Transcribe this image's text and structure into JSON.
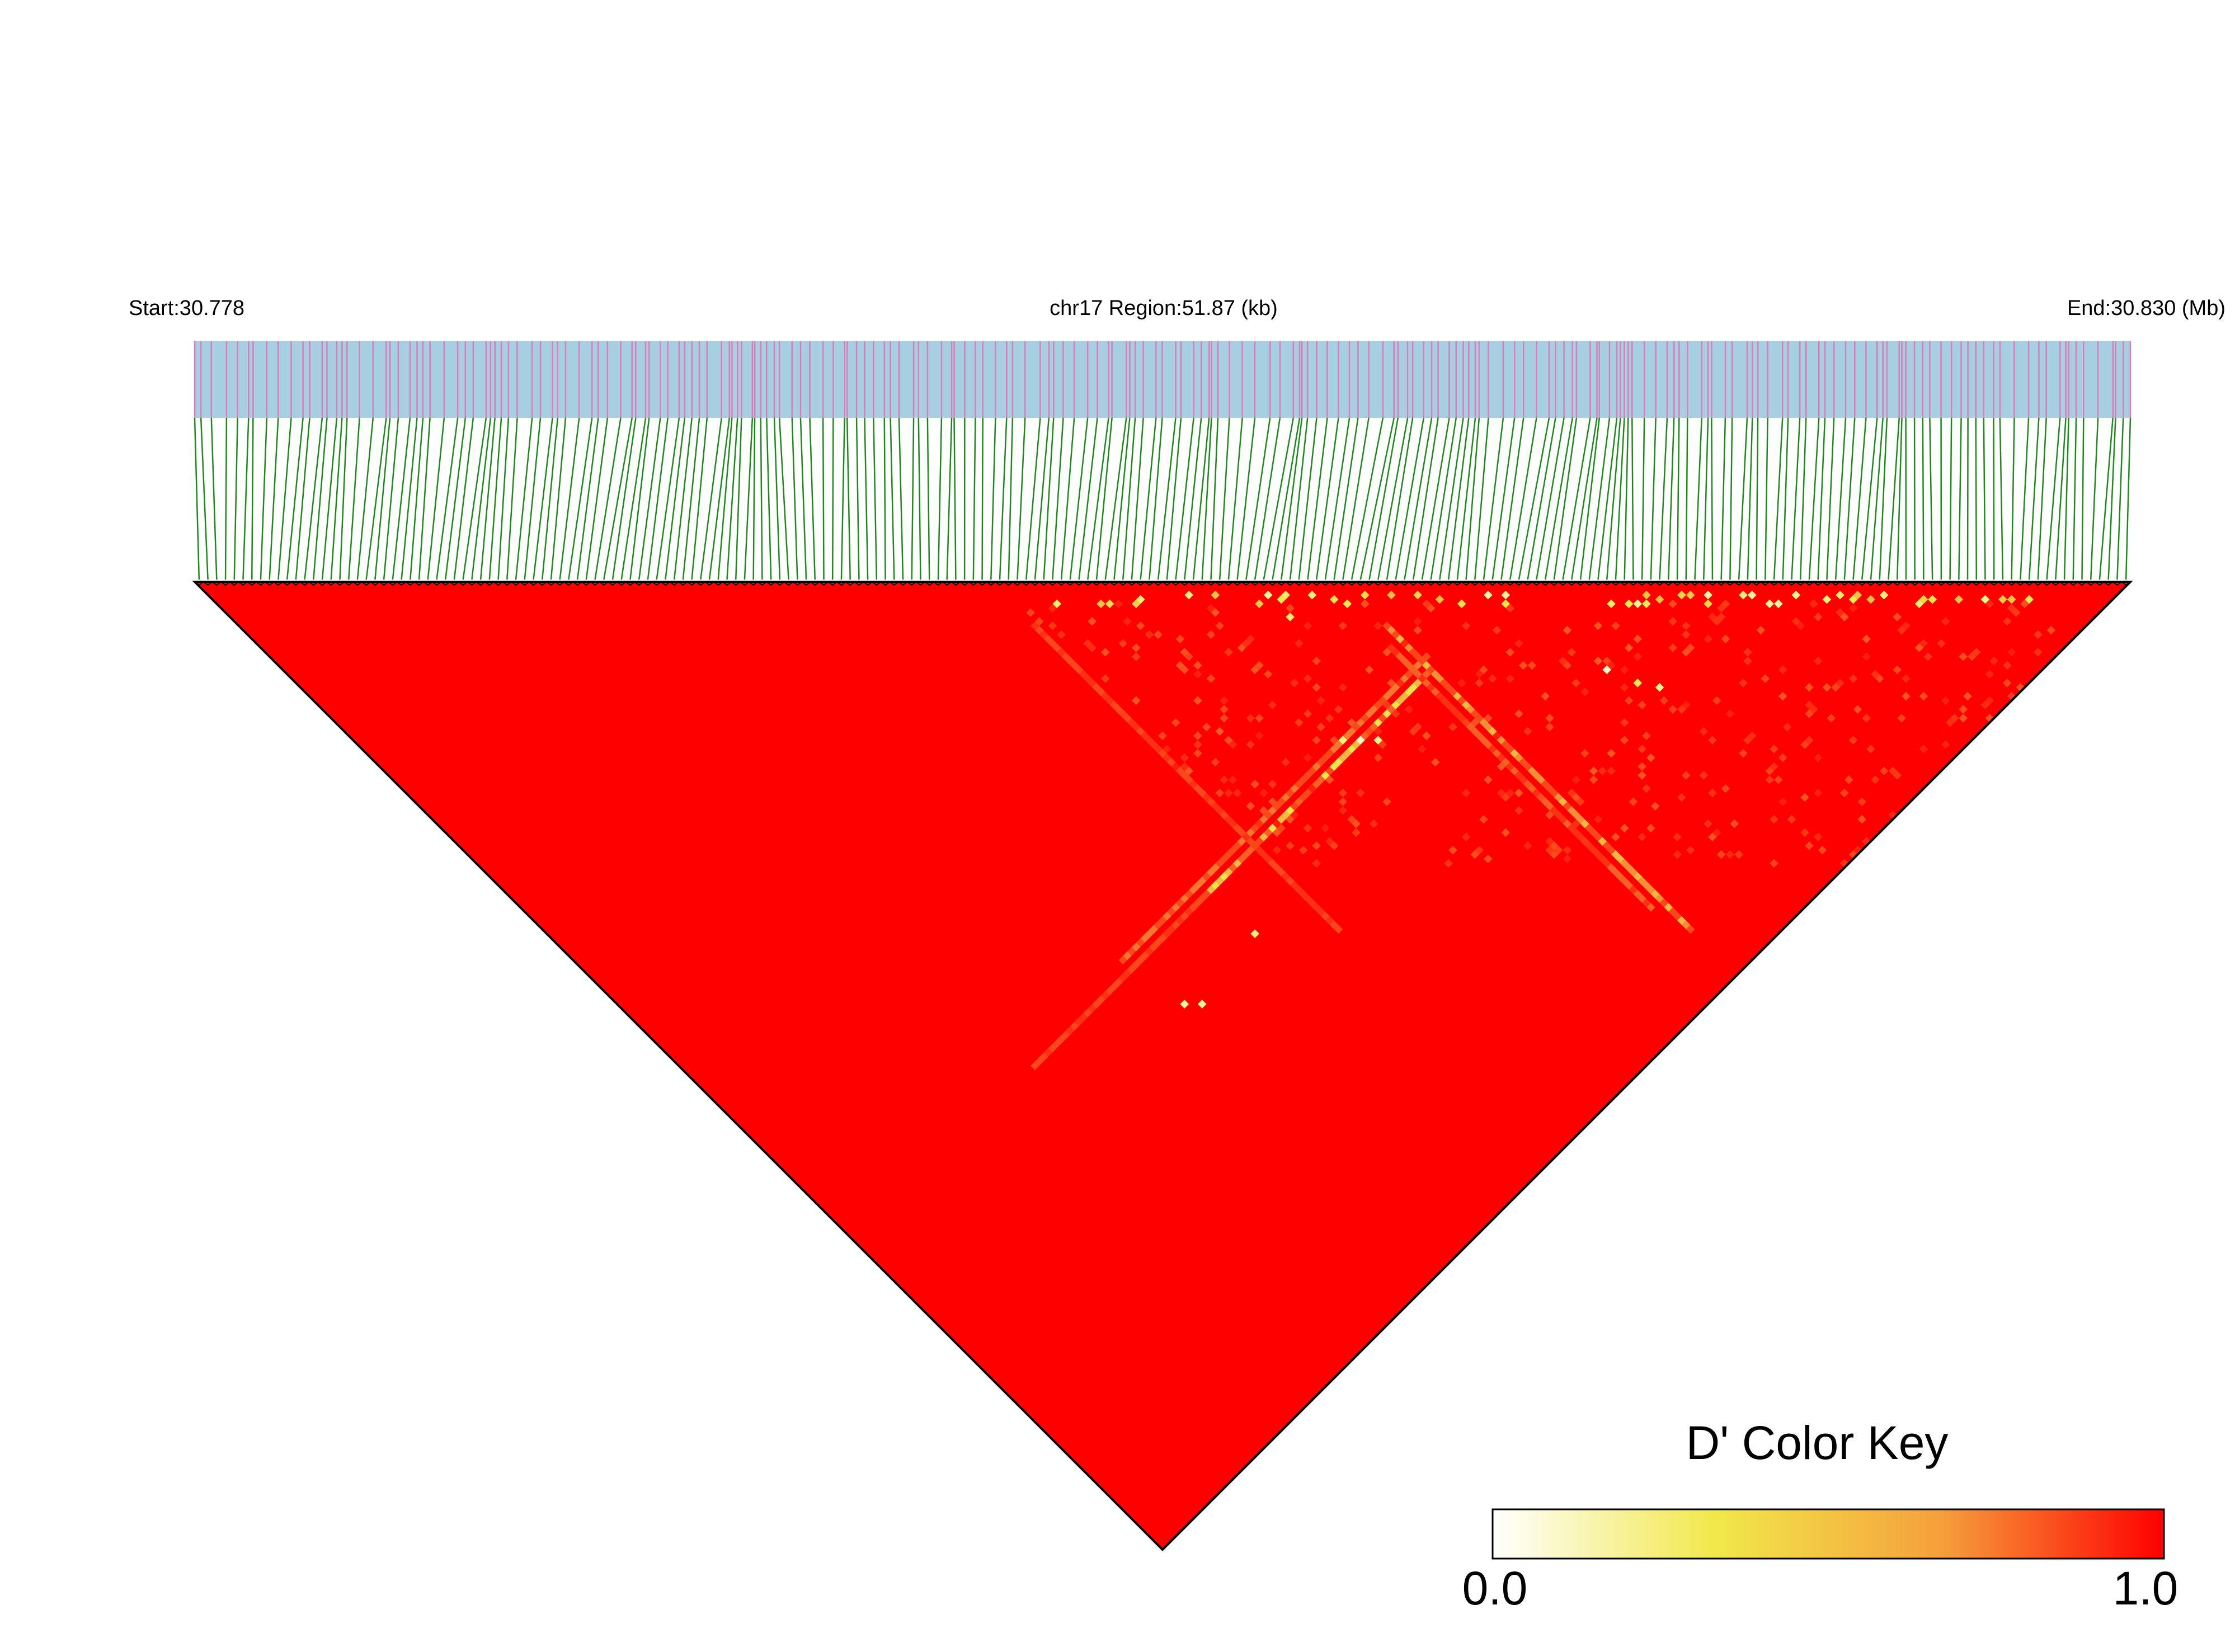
{
  "chart_data": {
    "type": "heatmap",
    "title": "",
    "region_start_label": "Start:30.778",
    "region_center_label": "chr17 Region:51.87 (kb)",
    "region_end_label": "End:30.830 (Mb)",
    "region_start_mb": 30.778,
    "region_end_mb": 30.83,
    "region_length_kb": 51.87,
    "metric": "D'",
    "color_key": {
      "title": "D' Color Key",
      "min_label": "0.0",
      "max_label": "1.0",
      "min": 0.0,
      "max": 1.0,
      "colors": [
        "#ffffff",
        "#f1e84a",
        "#f5a03c",
        "#ff0000"
      ]
    },
    "colors": {
      "snp_bar": "#a6cfe2",
      "snp_tick": "#e07ab8",
      "snp_connector": "#1a8a1a",
      "high_ld": "#ff0000",
      "triangle_border": "#000000"
    },
    "snp_count": 220,
    "dominant_value": 1.0,
    "notable_low_ld_cells": [
      {
        "i": 130,
        "j": 140,
        "value": 0.6
      },
      {
        "i": 135,
        "j": 150,
        "value": 0.4
      },
      {
        "i": 70,
        "j": 180,
        "value": 0.5
      },
      {
        "i": 120,
        "j": 200,
        "value": 0.7
      }
    ]
  }
}
